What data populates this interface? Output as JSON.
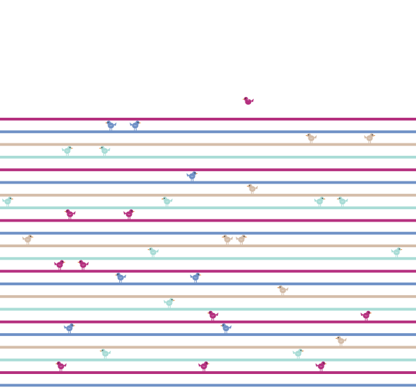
{
  "pattern": {
    "background": "#ffffff",
    "stripe_colors": {
      "magenta": "#b5307f",
      "blue": "#6f91c6",
      "tan": "#d4bda9",
      "mint": "#a9dcd6"
    },
    "stripe_sequence": [
      "magenta",
      "blue",
      "tan",
      "mint"
    ],
    "birds": [
      {
        "stripe": 0,
        "color": "magenta",
        "facing": "left",
        "flying": true
      },
      {
        "stripe": 1,
        "color": "blue",
        "facing": "left"
      },
      {
        "stripe": 1,
        "color": "blue",
        "facing": "right"
      },
      {
        "stripe": 2,
        "color": "tan",
        "facing": "left"
      },
      {
        "stripe": 2,
        "color": "tan",
        "facing": "right"
      },
      {
        "stripe": 3,
        "color": "mint",
        "facing": "right"
      },
      {
        "stripe": 3,
        "color": "mint",
        "facing": "left"
      },
      {
        "stripe": 5,
        "color": "blue",
        "facing": "right"
      },
      {
        "stripe": 6,
        "color": "tan",
        "facing": "left"
      },
      {
        "stripe": 7,
        "color": "mint",
        "facing": "right"
      },
      {
        "stripe": 7,
        "color": "mint",
        "facing": "left"
      },
      {
        "stripe": 7,
        "color": "mint",
        "facing": "right"
      },
      {
        "stripe": 7,
        "color": "mint",
        "facing": "left"
      },
      {
        "stripe": 8,
        "color": "magenta",
        "facing": "left"
      },
      {
        "stripe": 8,
        "color": "magenta",
        "facing": "right"
      },
      {
        "stripe": 10,
        "color": "tan",
        "facing": "right"
      },
      {
        "stripe": 10,
        "color": "tan",
        "facing": "left"
      },
      {
        "stripe": 10,
        "color": "tan",
        "facing": "right"
      },
      {
        "stripe": 11,
        "color": "mint",
        "facing": "left"
      },
      {
        "stripe": 11,
        "color": "mint",
        "facing": "right"
      },
      {
        "stripe": 12,
        "color": "magenta",
        "facing": "right"
      },
      {
        "stripe": 12,
        "color": "magenta",
        "facing": "left"
      },
      {
        "stripe": 13,
        "color": "blue",
        "facing": "left"
      },
      {
        "stripe": 13,
        "color": "blue",
        "facing": "right"
      },
      {
        "stripe": 14,
        "color": "tan",
        "facing": "left"
      },
      {
        "stripe": 15,
        "color": "mint",
        "facing": "right"
      },
      {
        "stripe": 16,
        "color": "magenta",
        "facing": "left"
      },
      {
        "stripe": 16,
        "color": "magenta",
        "facing": "right"
      },
      {
        "stripe": 17,
        "color": "blue",
        "facing": "right"
      },
      {
        "stripe": 17,
        "color": "blue",
        "facing": "left"
      },
      {
        "stripe": 18,
        "color": "tan",
        "facing": "left"
      },
      {
        "stripe": 19,
        "color": "mint",
        "facing": "left"
      },
      {
        "stripe": 19,
        "color": "mint",
        "facing": "right"
      },
      {
        "stripe": 20,
        "color": "magenta",
        "facing": "right"
      },
      {
        "stripe": 20,
        "color": "magenta",
        "facing": "left"
      },
      {
        "stripe": 20,
        "color": "magenta",
        "facing": "right"
      }
    ]
  }
}
